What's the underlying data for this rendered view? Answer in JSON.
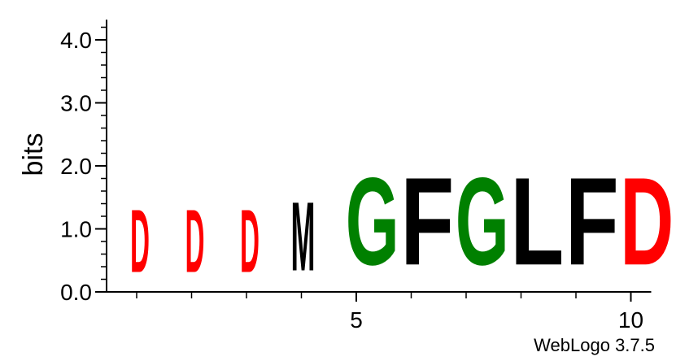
{
  "chart_data": {
    "type": "sequence-logo",
    "ylabel": "bits",
    "ylim": [
      0,
      4.32
    ],
    "yticks": [
      0.0,
      1.0,
      2.0,
      3.0,
      4.0
    ],
    "ytick_labels": [
      "0.0",
      "1.0",
      "2.0",
      "3.0",
      "4.0"
    ],
    "xticks": [
      5,
      10
    ],
    "xtick_labels": [
      "5",
      "10"
    ],
    "positions": [
      {
        "position": 1,
        "letter": "D",
        "bits": 1.6,
        "color": "#ff0000"
      },
      {
        "position": 2,
        "letter": "D",
        "bits": 1.6,
        "color": "#ff0000"
      },
      {
        "position": 3,
        "letter": "D",
        "bits": 1.6,
        "color": "#ff0000"
      },
      {
        "position": 4,
        "letter": "M",
        "bits": 1.75,
        "color": "#000000"
      },
      {
        "position": 5,
        "letter": "G",
        "bits": 2.22,
        "color": "#008000"
      },
      {
        "position": 6,
        "letter": "F",
        "bits": 2.22,
        "color": "#000000"
      },
      {
        "position": 7,
        "letter": "G",
        "bits": 2.22,
        "color": "#008000"
      },
      {
        "position": 8,
        "letter": "L",
        "bits": 2.22,
        "color": "#000000"
      },
      {
        "position": 9,
        "letter": "F",
        "bits": 2.22,
        "color": "#000000"
      },
      {
        "position": 10,
        "letter": "D",
        "bits": 2.22,
        "color": "#ff0000"
      }
    ]
  },
  "credit": "WebLogo 3.7.5"
}
